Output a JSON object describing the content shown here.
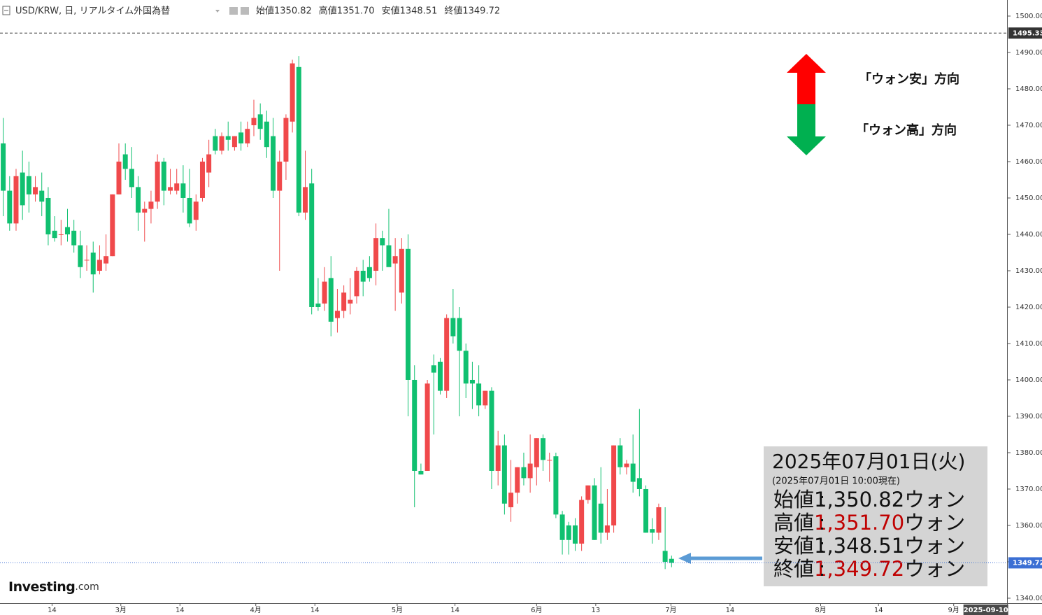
{
  "header": {
    "title": "USD/KRW, 日, リアルタイム外国為替",
    "fields": [
      {
        "label": "始値",
        "value": "1350.82"
      },
      {
        "label": "高値",
        "value": "1351.70"
      },
      {
        "label": "安値",
        "value": "1348.51"
      },
      {
        "label": "終値",
        "value": "1349.72"
      }
    ]
  },
  "logo": {
    "main": "Investing",
    "suffix": ".com"
  },
  "legend_arrow": {
    "up": "「ウォン安」方向",
    "down": "「ウォン高」方向"
  },
  "info_box": {
    "date": "2025年07月01日(火)",
    "asof": "(2025年07月01日 10:00現在)",
    "unit": "ウォン",
    "rows": [
      {
        "label": "始値",
        "value": "1,350.82",
        "highlight": false
      },
      {
        "label": "高値",
        "value": "1,351.70",
        "highlight": true
      },
      {
        "label": "安値",
        "value": "1,348.51",
        "highlight": false
      },
      {
        "label": "終値",
        "value": "1,349.72",
        "highlight": true
      }
    ]
  },
  "chart_data": {
    "type": "candlestick",
    "up_color": "#f0494b",
    "down_color": "#10c070",
    "xlim": [
      -0.5,
      156.2
    ],
    "ylim": [
      1338.65,
      1504.42
    ],
    "xticks": [
      {
        "value": 7.6,
        "label": "14"
      },
      {
        "value": 18.3,
        "label": "3月"
      },
      {
        "value": 27.5,
        "label": "14"
      },
      {
        "value": 39.3,
        "label": "4月"
      },
      {
        "value": 48.5,
        "label": "14"
      },
      {
        "value": 61.3,
        "label": "5月"
      },
      {
        "value": 70.3,
        "label": "14"
      },
      {
        "value": 83.0,
        "label": "6月"
      },
      {
        "value": 92.2,
        "label": "13"
      },
      {
        "value": 103.9,
        "label": "7月"
      },
      {
        "value": 113.1,
        "label": "14"
      },
      {
        "value": 127.2,
        "label": "8月"
      },
      {
        "value": 136.2,
        "label": "14"
      },
      {
        "value": 147.9,
        "label": "9月"
      }
    ],
    "cursor_date": {
      "value": 152.9,
      "label": "2025-09-10"
    },
    "yticks": [
      {
        "value": 1340,
        "label": "1340.00"
      },
      {
        "value": 1350,
        "label": "1350.00"
      },
      {
        "value": 1360,
        "label": "1360.00"
      },
      {
        "value": 1370,
        "label": "1370.00"
      },
      {
        "value": 1380,
        "label": "1380.00"
      },
      {
        "value": 1390,
        "label": "1390.00"
      },
      {
        "value": 1400,
        "label": "1400.00"
      },
      {
        "value": 1410,
        "label": "1410.00"
      },
      {
        "value": 1420,
        "label": "1420.00"
      },
      {
        "value": 1430,
        "label": "1430.00"
      },
      {
        "value": 1440,
        "label": "1440.00"
      },
      {
        "value": 1450,
        "label": "1450.00"
      },
      {
        "value": 1460,
        "label": "1460.00"
      },
      {
        "value": 1470,
        "label": "1470.00"
      },
      {
        "value": 1480,
        "label": "1480.00"
      },
      {
        "value": 1490,
        "label": "1490.00"
      },
      {
        "value": 1500,
        "label": "1500.00"
      }
    ],
    "price_lines": [
      {
        "value": 1495.33,
        "label": "1495.33",
        "color": "#333333",
        "style": "dashed"
      },
      {
        "value": 1349.72,
        "label": "1349.72",
        "color": "#3b6fd4",
        "style": "dotted"
      }
    ],
    "open": [
      1465,
      1452,
      1443,
      1457,
      1456,
      1451,
      1452,
      1450,
      1441,
      1440,
      1442,
      1441,
      1437,
      1433,
      1435,
      1430,
      1432,
      1434,
      1451,
      1462,
      1458,
      1453,
      1446,
      1447,
      1449,
      1460,
      1452,
      1452,
      1454,
      1450,
      1444,
      1450,
      1457,
      1467,
      1463,
      1467,
      1464,
      1468,
      1465,
      1470,
      1473,
      1471,
      1467,
      1452,
      1460,
      1471,
      1486,
      1446,
      1454,
      1421,
      1421,
      1428,
      1417,
      1419,
      1421,
      1423,
      1430,
      1431,
      1430,
      1439,
      1437,
      1432,
      1424,
      1436,
      1400,
      1375,
      1375,
      1404,
      1405,
      1397,
      1417,
      1417,
      1408,
      1400,
      1399,
      1393,
      1397,
      1375,
      1382,
      1365,
      1369,
      1376,
      1373,
      1376,
      1384,
      1378,
      1379,
      1363,
      1360,
      1360,
      1355,
      1367,
      1371,
      1366,
      1358,
      1360,
      1382,
      1376,
      1377,
      1373,
      1370,
      1359,
      1358,
      1353,
      1350.82
    ],
    "high": [
      1472,
      1456,
      1458,
      1463,
      1460,
      1456,
      1457,
      1453,
      1445,
      1444,
      1447,
      1444,
      1441,
      1437,
      1438,
      1437,
      1440,
      1451,
      1465,
      1465,
      1464,
      1456,
      1449,
      1452,
      1462,
      1461,
      1458,
      1458,
      1459,
      1458,
      1451,
      1461,
      1466,
      1469,
      1468,
      1471,
      1467,
      1471,
      1471,
      1477,
      1476,
      1474,
      1472,
      1463,
      1473,
      1488,
      1489,
      1463,
      1458,
      1428,
      1431,
      1434,
      1425,
      1426,
      1428,
      1431,
      1433,
      1434,
      1443,
      1441,
      1447,
      1439,
      1439,
      1440,
      1404,
      1377,
      1400,
      1407,
      1406,
      1418,
      1425,
      1420,
      1410,
      1405,
      1404,
      1397,
      1398,
      1386,
      1385,
      1378,
      1376,
      1380,
      1385,
      1384,
      1385,
      1380,
      1380,
      1364,
      1361,
      1362,
      1368,
      1371,
      1373,
      1376,
      1370,
      1382,
      1384,
      1378,
      1385,
      1392,
      1371,
      1362,
      1366,
      1365,
      1351.7
    ],
    "low": [
      1445,
      1441,
      1441,
      1444,
      1446,
      1449,
      1445,
      1437,
      1438,
      1437,
      1438,
      1435,
      1428,
      1430,
      1424,
      1429,
      1430,
      1434,
      1451,
      1455,
      1450,
      1441,
      1438,
      1443,
      1447,
      1448,
      1451,
      1451,
      1446,
      1442,
      1441,
      1449,
      1453,
      1462,
      1462,
      1463,
      1463,
      1463,
      1464,
      1467,
      1466,
      1461,
      1450,
      1430,
      1455,
      1468,
      1445,
      1444,
      1418,
      1419,
      1419,
      1412,
      1413,
      1417,
      1418,
      1421,
      1423,
      1427,
      1426,
      1430,
      1432,
      1419,
      1421,
      1390,
      1365,
      1374,
      1375,
      1385,
      1396,
      1395,
      1410,
      1390,
      1395,
      1392,
      1390,
      1392,
      1370,
      1371,
      1363,
      1361,
      1366,
      1371,
      1369,
      1371,
      1375,
      1372,
      1362,
      1352,
      1352,
      1353,
      1353,
      1366,
      1356,
      1355,
      1356,
      1358,
      1374,
      1374,
      1369,
      1368,
      1358,
      1355,
      1356,
      1348,
      1348.51
    ],
    "close": [
      1452,
      1443,
      1456,
      1448,
      1451,
      1453,
      1449,
      1440,
      1439,
      1440,
      1440,
      1437,
      1431,
      1433,
      1429,
      1433,
      1434,
      1451,
      1460,
      1458,
      1453,
      1446,
      1447,
      1449,
      1460,
      1452,
      1453,
      1454,
      1450,
      1443,
      1449,
      1460,
      1462,
      1463,
      1467,
      1466,
      1467,
      1465,
      1469,
      1472,
      1469,
      1464,
      1452,
      1460,
      1472,
      1487,
      1446,
      1453,
      1420,
      1420,
      1427,
      1416,
      1419,
      1424,
      1422,
      1430,
      1427,
      1428,
      1439,
      1437,
      1431,
      1434,
      1436,
      1400,
      1375,
      1374,
      1399,
      1402,
      1397,
      1417,
      1412,
      1408,
      1399,
      1399,
      1393,
      1397,
      1375,
      1382,
      1366,
      1369,
      1376,
      1373,
      1377,
      1384,
      1378,
      1378,
      1363,
      1356,
      1356,
      1355,
      1367,
      1371,
      1356,
      1358,
      1360,
      1382,
      1376,
      1377,
      1372,
      1370,
      1358,
      1358,
      1365,
      1350,
      1349.72
    ]
  }
}
